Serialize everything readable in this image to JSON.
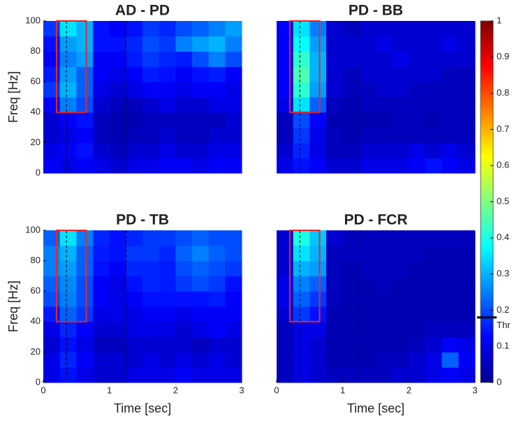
{
  "chart_data": [
    {
      "type": "heatmap",
      "title": "AD - PD",
      "ylabel": "Freq [Hz]",
      "xlim": [
        0,
        3
      ],
      "ylim": [
        0,
        100
      ],
      "yticks": [
        0,
        20,
        40,
        60,
        80,
        100
      ],
      "box": {
        "x": [
          0.2,
          0.65
        ],
        "y": [
          40,
          100
        ]
      },
      "vlines": [
        0.35,
        1.25
      ],
      "values": [
        [
          0.12,
          0.1,
          0.12,
          0.1,
          0.08,
          0.1,
          0.1,
          0.12,
          0.12,
          0.1,
          0.12,
          0.12
        ],
        [
          0.1,
          0.12,
          0.14,
          0.08,
          0.06,
          0.08,
          0.08,
          0.1,
          0.08,
          0.08,
          0.1,
          0.1
        ],
        [
          0.08,
          0.1,
          0.12,
          0.06,
          0.05,
          0.06,
          0.06,
          0.08,
          0.06,
          0.06,
          0.08,
          0.08
        ],
        [
          0.08,
          0.12,
          0.14,
          0.06,
          0.05,
          0.05,
          0.06,
          0.06,
          0.06,
          0.06,
          0.06,
          0.08
        ],
        [
          0.12,
          0.25,
          0.2,
          0.08,
          0.06,
          0.06,
          0.08,
          0.1,
          0.08,
          0.08,
          0.1,
          0.1
        ],
        [
          0.18,
          0.3,
          0.22,
          0.1,
          0.08,
          0.1,
          0.12,
          0.12,
          0.1,
          0.12,
          0.12,
          0.1
        ],
        [
          0.15,
          0.28,
          0.22,
          0.12,
          0.1,
          0.12,
          0.15,
          0.14,
          0.12,
          0.14,
          0.15,
          0.12
        ],
        [
          0.12,
          0.25,
          0.28,
          0.12,
          0.12,
          0.15,
          0.18,
          0.16,
          0.15,
          0.2,
          0.25,
          0.2
        ],
        [
          0.14,
          0.28,
          0.3,
          0.14,
          0.14,
          0.16,
          0.2,
          0.18,
          0.25,
          0.28,
          0.3,
          0.25
        ],
        [
          0.18,
          0.35,
          0.3,
          0.14,
          0.12,
          0.14,
          0.18,
          0.16,
          0.2,
          0.22,
          0.25,
          0.28
        ]
      ]
    },
    {
      "type": "heatmap",
      "title": "PD - BB",
      "xlim": [
        0,
        3
      ],
      "ylim": [
        0,
        100
      ],
      "box": {
        "x": [
          0.2,
          0.65
        ],
        "y": [
          40,
          100
        ]
      },
      "vlines": [
        0.35,
        1.25
      ],
      "values": [
        [
          0.1,
          0.14,
          0.12,
          0.08,
          0.08,
          0.1,
          0.1,
          0.1,
          0.12,
          0.14,
          0.12,
          0.1
        ],
        [
          0.08,
          0.16,
          0.1,
          0.06,
          0.06,
          0.08,
          0.08,
          0.08,
          0.1,
          0.08,
          0.1,
          0.08
        ],
        [
          0.06,
          0.18,
          0.1,
          0.06,
          0.05,
          0.06,
          0.06,
          0.06,
          0.06,
          0.06,
          0.06,
          0.06
        ],
        [
          0.06,
          0.2,
          0.12,
          0.05,
          0.05,
          0.05,
          0.05,
          0.06,
          0.06,
          0.05,
          0.06,
          0.06
        ],
        [
          0.1,
          0.35,
          0.22,
          0.06,
          0.05,
          0.06,
          0.06,
          0.06,
          0.06,
          0.06,
          0.06,
          0.06
        ],
        [
          0.12,
          0.42,
          0.28,
          0.08,
          0.06,
          0.06,
          0.08,
          0.08,
          0.06,
          0.06,
          0.06,
          0.06
        ],
        [
          0.12,
          0.45,
          0.3,
          0.08,
          0.06,
          0.08,
          0.08,
          0.08,
          0.08,
          0.08,
          0.06,
          0.06
        ],
        [
          0.12,
          0.42,
          0.3,
          0.08,
          0.08,
          0.08,
          0.08,
          0.1,
          0.08,
          0.08,
          0.08,
          0.08
        ],
        [
          0.12,
          0.38,
          0.28,
          0.08,
          0.08,
          0.08,
          0.1,
          0.08,
          0.08,
          0.08,
          0.1,
          0.08
        ],
        [
          0.12,
          0.35,
          0.25,
          0.08,
          0.06,
          0.08,
          0.08,
          0.08,
          0.08,
          0.08,
          0.08,
          0.08
        ]
      ]
    },
    {
      "type": "heatmap",
      "title": "PD - TB",
      "xlabel": "Time [sec]",
      "ylabel": "Freq [Hz]",
      "xlim": [
        0,
        3
      ],
      "ylim": [
        0,
        100
      ],
      "xticks": [
        0,
        1,
        2,
        3
      ],
      "yticks": [
        0,
        20,
        40,
        60,
        80,
        100
      ],
      "box": {
        "x": [
          0.2,
          0.65
        ],
        "y": [
          40,
          100
        ]
      },
      "vlines": [
        0.35,
        1.25
      ],
      "values": [
        [
          0.1,
          0.14,
          0.1,
          0.08,
          0.08,
          0.1,
          0.1,
          0.1,
          0.12,
          0.1,
          0.1,
          0.1
        ],
        [
          0.1,
          0.16,
          0.12,
          0.08,
          0.08,
          0.08,
          0.1,
          0.08,
          0.1,
          0.08,
          0.1,
          0.08
        ],
        [
          0.08,
          0.14,
          0.1,
          0.06,
          0.06,
          0.08,
          0.08,
          0.08,
          0.08,
          0.06,
          0.08,
          0.08
        ],
        [
          0.1,
          0.16,
          0.12,
          0.08,
          0.08,
          0.1,
          0.1,
          0.1,
          0.08,
          0.1,
          0.12,
          0.1
        ],
        [
          0.15,
          0.22,
          0.18,
          0.1,
          0.1,
          0.1,
          0.12,
          0.12,
          0.1,
          0.12,
          0.12,
          0.12
        ],
        [
          0.2,
          0.25,
          0.2,
          0.12,
          0.1,
          0.12,
          0.14,
          0.14,
          0.14,
          0.14,
          0.15,
          0.12
        ],
        [
          0.22,
          0.26,
          0.2,
          0.12,
          0.1,
          0.14,
          0.16,
          0.15,
          0.18,
          0.2,
          0.18,
          0.14
        ],
        [
          0.25,
          0.28,
          0.22,
          0.14,
          0.12,
          0.16,
          0.16,
          0.15,
          0.2,
          0.22,
          0.2,
          0.18
        ],
        [
          0.25,
          0.3,
          0.22,
          0.15,
          0.14,
          0.18,
          0.18,
          0.16,
          0.22,
          0.25,
          0.22,
          0.2
        ],
        [
          0.22,
          0.35,
          0.25,
          0.16,
          0.14,
          0.16,
          0.18,
          0.18,
          0.2,
          0.22,
          0.2,
          0.2
        ]
      ]
    },
    {
      "type": "heatmap",
      "title": "PD - FCR",
      "xlabel": "Time [sec]",
      "xlim": [
        0,
        3
      ],
      "ylim": [
        0,
        100
      ],
      "xticks": [
        0,
        1,
        2,
        3
      ],
      "box": {
        "x": [
          0.2,
          0.65
        ],
        "y": [
          40,
          100
        ]
      },
      "vlines": [
        0.35,
        1.25
      ],
      "values": [
        [
          0.06,
          0.1,
          0.08,
          0.06,
          0.06,
          0.06,
          0.06,
          0.08,
          0.08,
          0.1,
          0.12,
          0.1
        ],
        [
          0.06,
          0.1,
          0.08,
          0.05,
          0.05,
          0.05,
          0.06,
          0.06,
          0.08,
          0.1,
          0.22,
          0.12
        ],
        [
          0.06,
          0.1,
          0.08,
          0.05,
          0.05,
          0.05,
          0.05,
          0.05,
          0.06,
          0.08,
          0.12,
          0.1
        ],
        [
          0.06,
          0.1,
          0.1,
          0.05,
          0.05,
          0.05,
          0.05,
          0.05,
          0.05,
          0.06,
          0.06,
          0.06
        ],
        [
          0.08,
          0.18,
          0.14,
          0.05,
          0.05,
          0.05,
          0.05,
          0.05,
          0.05,
          0.05,
          0.05,
          0.05
        ],
        [
          0.1,
          0.22,
          0.18,
          0.06,
          0.05,
          0.05,
          0.05,
          0.05,
          0.05,
          0.05,
          0.05,
          0.05
        ],
        [
          0.1,
          0.25,
          0.22,
          0.06,
          0.05,
          0.05,
          0.06,
          0.05,
          0.05,
          0.05,
          0.05,
          0.05
        ],
        [
          0.08,
          0.3,
          0.28,
          0.06,
          0.05,
          0.06,
          0.06,
          0.06,
          0.05,
          0.05,
          0.05,
          0.05
        ],
        [
          0.08,
          0.35,
          0.3,
          0.06,
          0.06,
          0.06,
          0.06,
          0.06,
          0.06,
          0.05,
          0.05,
          0.05
        ],
        [
          0.08,
          0.4,
          0.32,
          0.08,
          0.06,
          0.06,
          0.06,
          0.06,
          0.06,
          0.06,
          0.06,
          0.06
        ]
      ]
    }
  ],
  "colorbar": {
    "zlim": [
      0,
      1
    ],
    "ticks": [
      0,
      0.1,
      0.2,
      0.3,
      0.4,
      0.5,
      0.6,
      0.7,
      0.8,
      0.9,
      1
    ],
    "threshold": {
      "value": 0.18,
      "label": "Thr"
    }
  }
}
